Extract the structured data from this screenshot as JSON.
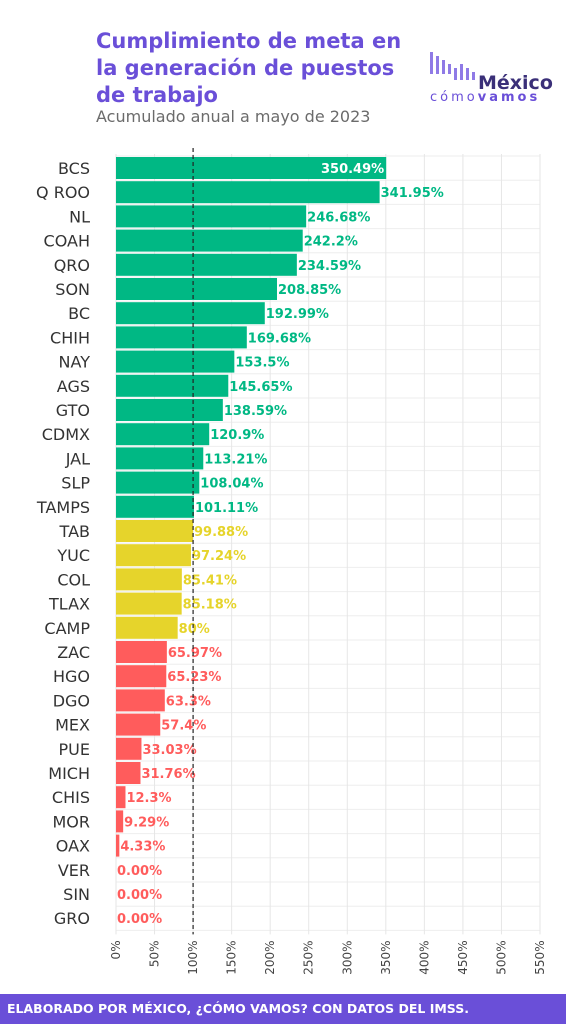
{
  "header": {
    "title": "Cumplimiento de meta en la generación de puestos de trabajo",
    "subtitle": "Acumulado anual a mayo de 2023"
  },
  "logo": {
    "name": "México",
    "sub_light": "cómo",
    "sub_bold": "vamos",
    "icon": "bars-logo-icon"
  },
  "footer": {
    "text": "ELABORADO POR MÉXICO, ¿CÓMO VAMOS? CON DATOS DEL IMSS."
  },
  "colors": {
    "above_goal": "#00b884",
    "near_goal": "#e6d42b",
    "below_goal": "#ff5c5c",
    "accent": "#6a4fd8"
  },
  "chart_data": {
    "type": "bar",
    "orientation": "horizontal",
    "title": "Cumplimiento de meta en la generación de puestos de trabajo",
    "subtitle": "Acumulado anual a mayo de 2023",
    "xlim": [
      0,
      550
    ],
    "x_ticks": [
      0,
      50,
      100,
      150,
      200,
      250,
      300,
      350,
      400,
      450,
      500,
      550
    ],
    "tick_labels": [
      "0%",
      "50%",
      "100%",
      "150%",
      "200%",
      "250%",
      "300%",
      "350%",
      "400%",
      "450%",
      "500%",
      "550%"
    ],
    "reference_line": 100,
    "grid": true,
    "categories": [
      "BCS",
      "Q ROO",
      "NL",
      "COAH",
      "QRO",
      "SON",
      "BC",
      "CHIH",
      "NAY",
      "AGS",
      "GTO",
      "CDMX",
      "JAL",
      "SLP",
      "TAMPS",
      "TAB",
      "YUC",
      "COL",
      "TLAX",
      "CAMP",
      "ZAC",
      "HGO",
      "DGO",
      "MEX",
      "PUE",
      "MICH",
      "CHIS",
      "MOR",
      "OAX",
      "VER",
      "SIN",
      "GRO"
    ],
    "values": [
      350.49,
      341.95,
      246.68,
      242.2,
      234.59,
      208.85,
      192.99,
      169.68,
      153.5,
      145.65,
      138.59,
      120.9,
      113.21,
      108.04,
      101.11,
      99.88,
      97.24,
      85.41,
      85.18,
      80,
      65.97,
      65.23,
      63.3,
      57.4,
      33.03,
      31.76,
      12.3,
      9.29,
      4.33,
      0,
      0,
      0
    ],
    "labels": [
      "350.49%",
      "341.95%",
      "246.68%",
      "242.2%",
      "234.59%",
      "208.85%",
      "192.99%",
      "169.68%",
      "153.5%",
      "145.65%",
      "138.59%",
      "120.9%",
      "113.21%",
      "108.04%",
      "101.11%",
      "99.88%",
      "97.24%",
      "85.41%",
      "85.18%",
      "80%",
      "65.97%",
      "65.23%",
      "63.3%",
      "57.4%",
      "33.03%",
      "31.76%",
      "12.3%",
      "9.29%",
      "4.33%",
      "0.00%",
      "0.00%",
      "0.00%"
    ]
  }
}
